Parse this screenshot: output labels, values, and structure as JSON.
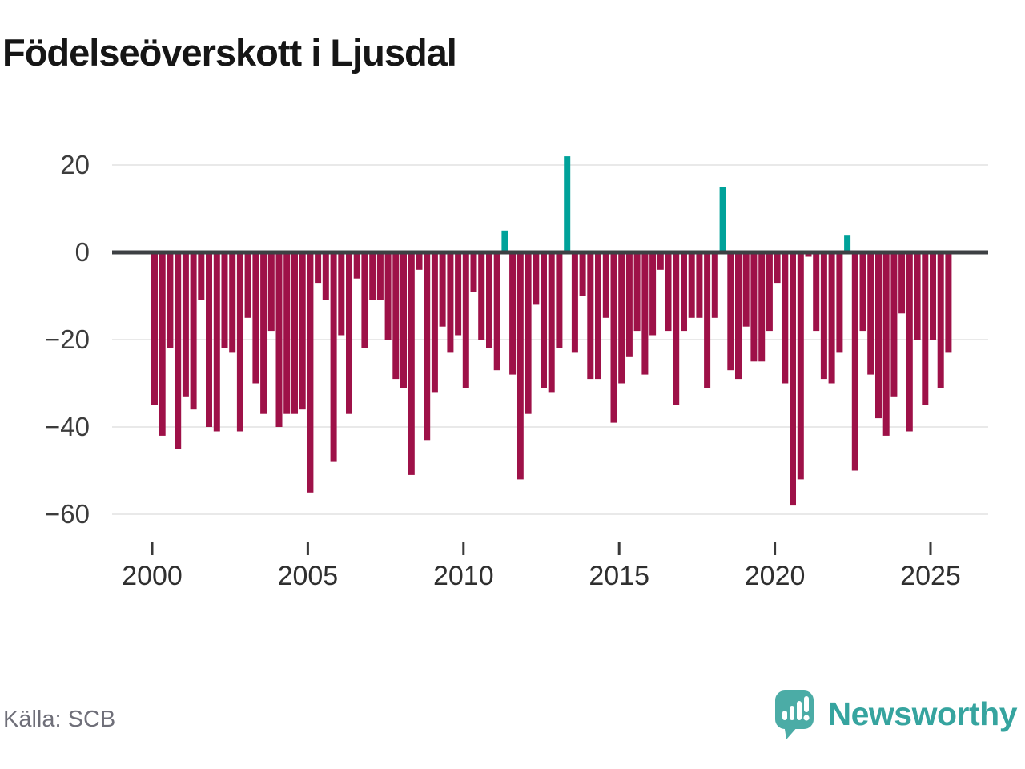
{
  "title": "Födelseöverskott i Ljusdal",
  "source": {
    "label": "Källa: SCB"
  },
  "brand": {
    "name": "Newsworthy",
    "logo_icon": "speech-bubble-with-bar-chart-and-exclamation"
  },
  "colors": {
    "negative_bar": "#9E1148",
    "positive_bar": "#00A29A",
    "zero_line": "#3D4043",
    "grid_line": "#E9E9E9",
    "title_text": "#161616",
    "axis_text": "#3C3C3C",
    "source_text": "#6F6F79",
    "brand_teal": "#36A49F",
    "logo_teal": "#4BACA6"
  },
  "chart_data": {
    "type": "bar",
    "title": "Födelseöverskott i Ljusdal",
    "xlabel": "",
    "ylabel": "",
    "x_unit": "quarter",
    "start_period": "2000-Q1",
    "end_period": "2025-Q3",
    "quarters_per_year": 4,
    "start_year": 2000,
    "ylim": [
      -66,
      26
    ],
    "y_ticks": [
      20,
      0,
      -20,
      -40,
      -60
    ],
    "x_ticks": [
      2000,
      2005,
      2010,
      2015,
      2020,
      2025
    ],
    "grid": "horizontal",
    "legend_position": "none",
    "series": [
      {
        "name": "Födelseöverskott per kvartal",
        "values": [
          -35,
          -42,
          -22,
          -45,
          -33,
          -36,
          -11,
          -40,
          -41,
          -22,
          -23,
          -41,
          -15,
          -30,
          -37,
          -18,
          -40,
          -37,
          -37,
          -36,
          -55,
          -7,
          -11,
          -48,
          -19,
          -37,
          -6,
          -22,
          -11,
          -11,
          -20,
          -29,
          -31,
          -51,
          -4,
          -43,
          -32,
          -17,
          -23,
          -19,
          -31,
          -9,
          -20,
          -22,
          -27,
          5,
          -28,
          -52,
          -37,
          -12,
          -31,
          -32,
          -22,
          22,
          -23,
          -10,
          -29,
          -29,
          -15,
          -39,
          -30,
          -24,
          -18,
          -28,
          -19,
          -4,
          -18,
          -35,
          -18,
          -15,
          -15,
          -31,
          -15,
          15,
          -27,
          -29,
          -17,
          -25,
          -25,
          -18,
          -7,
          -30,
          -58,
          -52,
          -1,
          -18,
          -29,
          -30,
          -23,
          4,
          -50,
          -18,
          -28,
          -38,
          -42,
          -33,
          -14,
          -41,
          -20,
          -35,
          -20,
          -31,
          -23
        ]
      }
    ],
    "positive_highlight_periods": [
      "2011-Q2",
      "2013-Q2",
      "2018-Q2",
      "2022-Q2"
    ]
  }
}
